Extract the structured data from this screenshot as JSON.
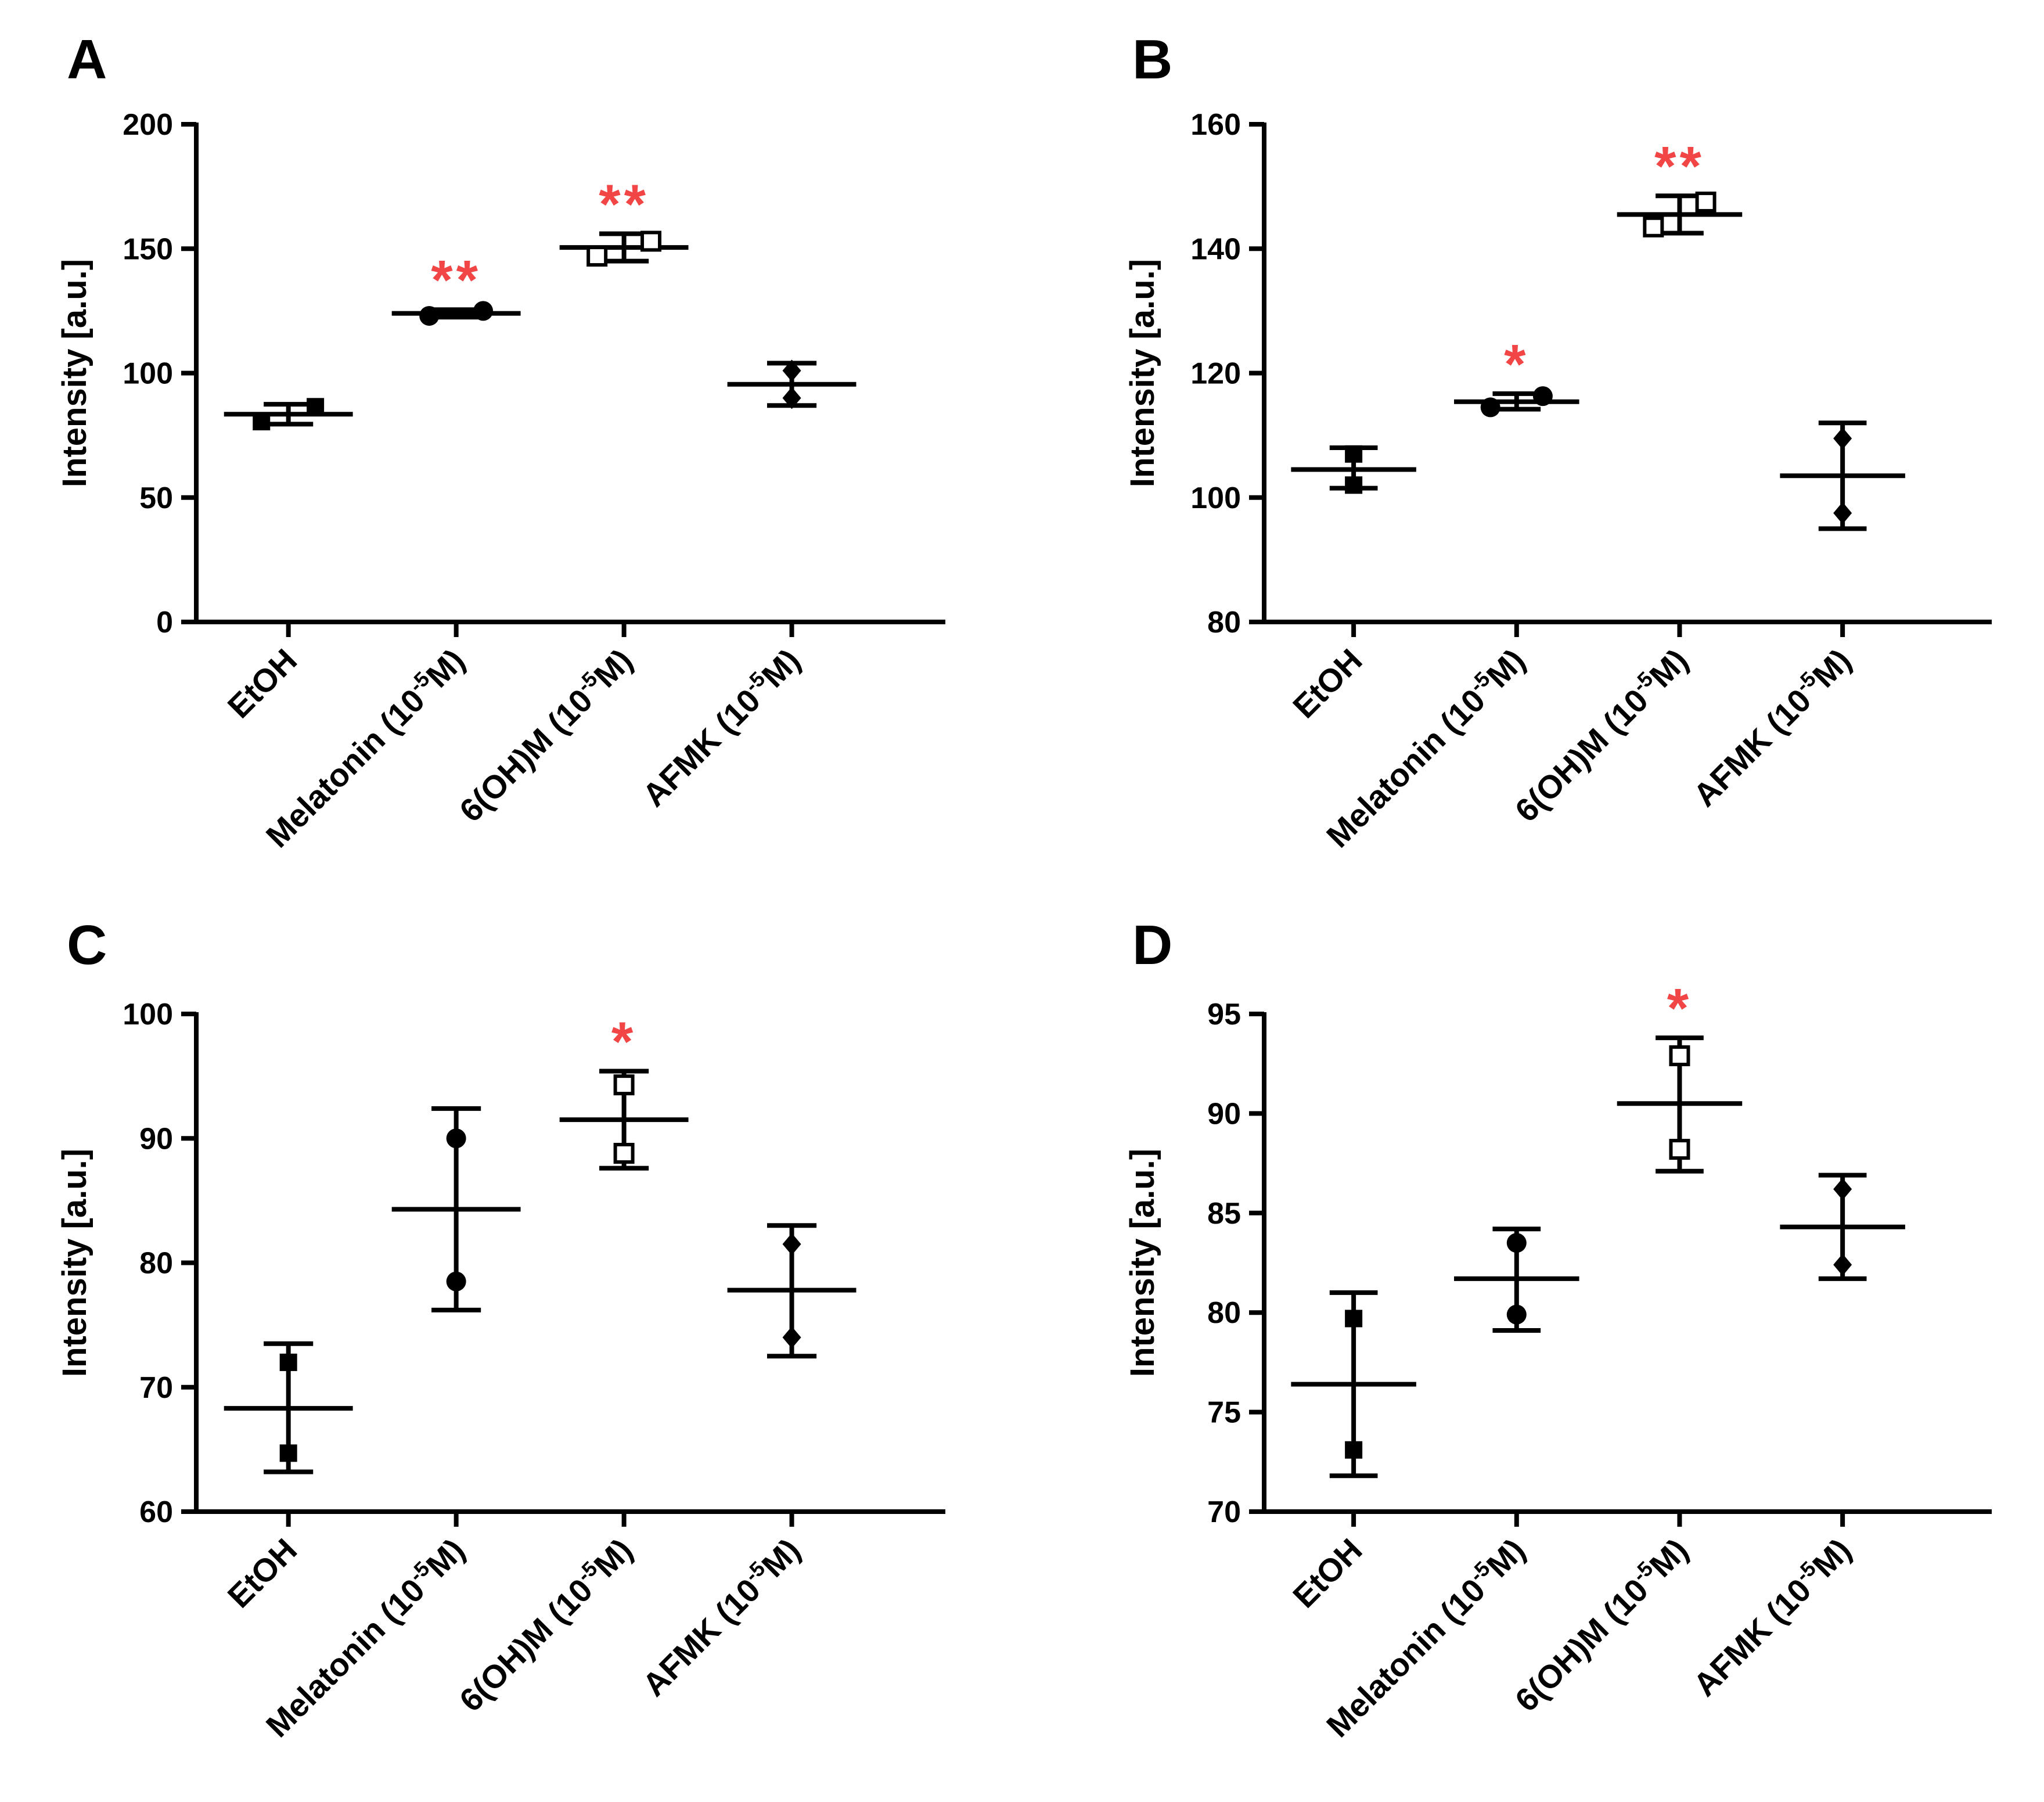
{
  "colors": {
    "axis": "#000000",
    "text": "#000000",
    "significance": "#f24545",
    "background": "#ffffff"
  },
  "chart_data": [
    {
      "panel": "A",
      "type": "scatter",
      "ylabel": "Intensity [a.u.]",
      "ylim": [
        0,
        200
      ],
      "yticks": [
        0,
        50,
        100,
        150,
        200
      ],
      "categories": [
        {
          "base": "EtOH",
          "sup": "",
          "post": ""
        },
        {
          "base": "Melatonin (10",
          "sup": "-5",
          "post": "M)"
        },
        {
          "base": "6(OH)M (10",
          "sup": "-5",
          "post": "M)"
        },
        {
          "base": "AFMK (10",
          "sup": "-5",
          "post": "M)"
        }
      ],
      "series": [
        {
          "marker": "square",
          "points": [
            80.5,
            86.5
          ],
          "mean": 83.5,
          "err_low": 79.5,
          "err_high": 87.5,
          "sig": ""
        },
        {
          "marker": "circle",
          "points": [
            123,
            125
          ],
          "mean": 124,
          "err_low": 122.5,
          "err_high": 125.5,
          "sig": "**"
        },
        {
          "marker": "open-square",
          "points": [
            147,
            153
          ],
          "mean": 150.5,
          "err_low": 145,
          "err_high": 156,
          "sig": "**"
        },
        {
          "marker": "diamond",
          "points": [
            90,
            101
          ],
          "mean": 95.5,
          "err_low": 87,
          "err_high": 104,
          "sig": ""
        }
      ]
    },
    {
      "panel": "B",
      "type": "scatter",
      "ylabel": "Intensity [a.u.]",
      "ylim": [
        80,
        160
      ],
      "yticks": [
        80,
        100,
        120,
        140,
        160
      ],
      "categories": [
        {
          "base": "EtOH",
          "sup": "",
          "post": ""
        },
        {
          "base": "Melatonin (10",
          "sup": "-5",
          "post": "M)"
        },
        {
          "base": "6(OH)M (10",
          "sup": "-5",
          "post": "M)"
        },
        {
          "base": "AFMK (10",
          "sup": "-5",
          "post": "M)"
        }
      ],
      "series": [
        {
          "marker": "square",
          "points": [
            102,
            107
          ],
          "mean": 104.5,
          "err_low": 101.5,
          "err_high": 108,
          "sig": ""
        },
        {
          "marker": "circle",
          "points": [
            114.5,
            116.3
          ],
          "mean": 115.4,
          "err_low": 114.2,
          "err_high": 116.7,
          "sig": "*"
        },
        {
          "marker": "open-square",
          "points": [
            143.5,
            147.5
          ],
          "mean": 145.5,
          "err_low": 142.5,
          "err_high": 148.5,
          "sig": "**"
        },
        {
          "marker": "diamond",
          "points": [
            97.5,
            109.5
          ],
          "mean": 103.5,
          "err_low": 95,
          "err_high": 112,
          "sig": ""
        }
      ]
    },
    {
      "panel": "C",
      "type": "scatter",
      "ylabel": "Intensity [a.u.]",
      "ylim": [
        60,
        100
      ],
      "yticks": [
        60,
        70,
        80,
        90,
        100
      ],
      "categories": [
        {
          "base": "EtOH",
          "sup": "",
          "post": ""
        },
        {
          "base": "Melatonin (10",
          "sup": "-5",
          "post": "M)"
        },
        {
          "base": "6(OH)M (10",
          "sup": "-5",
          "post": "M)"
        },
        {
          "base": "AFMK (10",
          "sup": "-5",
          "post": "M)"
        }
      ],
      "series": [
        {
          "marker": "square",
          "points": [
            64.7,
            72
          ],
          "mean": 68.3,
          "err_low": 63.2,
          "err_high": 73.5,
          "sig": ""
        },
        {
          "marker": "circle",
          "points": [
            78.5,
            90
          ],
          "mean": 84.3,
          "err_low": 76.2,
          "err_high": 92.4,
          "sig": ""
        },
        {
          "marker": "open-square",
          "points": [
            88.8,
            94.3
          ],
          "mean": 91.5,
          "err_low": 87.6,
          "err_high": 95.4,
          "sig": "*"
        },
        {
          "marker": "diamond",
          "points": [
            74,
            81.5
          ],
          "mean": 77.8,
          "err_low": 72.5,
          "err_high": 83,
          "sig": ""
        }
      ]
    },
    {
      "panel": "D",
      "type": "scatter",
      "ylabel": "Intensity [a.u.]",
      "ylim": [
        70,
        95
      ],
      "yticks": [
        70,
        75,
        80,
        85,
        90,
        95
      ],
      "categories": [
        {
          "base": "EtOH",
          "sup": "",
          "post": ""
        },
        {
          "base": "Melatonin (10",
          "sup": "-5",
          "post": "M)"
        },
        {
          "base": "6(OH)M (10",
          "sup": "-5",
          "post": "M)"
        },
        {
          "base": "AFMK (10",
          "sup": "-5",
          "post": "M)"
        }
      ],
      "series": [
        {
          "marker": "square",
          "points": [
            73.1,
            79.7
          ],
          "mean": 76.4,
          "err_low": 71.8,
          "err_high": 81,
          "sig": ""
        },
        {
          "marker": "circle",
          "points": [
            79.9,
            83.5
          ],
          "mean": 81.7,
          "err_low": 79.1,
          "err_high": 84.2,
          "sig": ""
        },
        {
          "marker": "open-square",
          "points": [
            88.2,
            92.9
          ],
          "mean": 90.5,
          "err_low": 87.1,
          "err_high": 93.8,
          "sig": "*"
        },
        {
          "marker": "diamond",
          "points": [
            82.4,
            86.2
          ],
          "mean": 84.3,
          "err_low": 81.7,
          "err_high": 86.9,
          "sig": ""
        }
      ]
    }
  ]
}
